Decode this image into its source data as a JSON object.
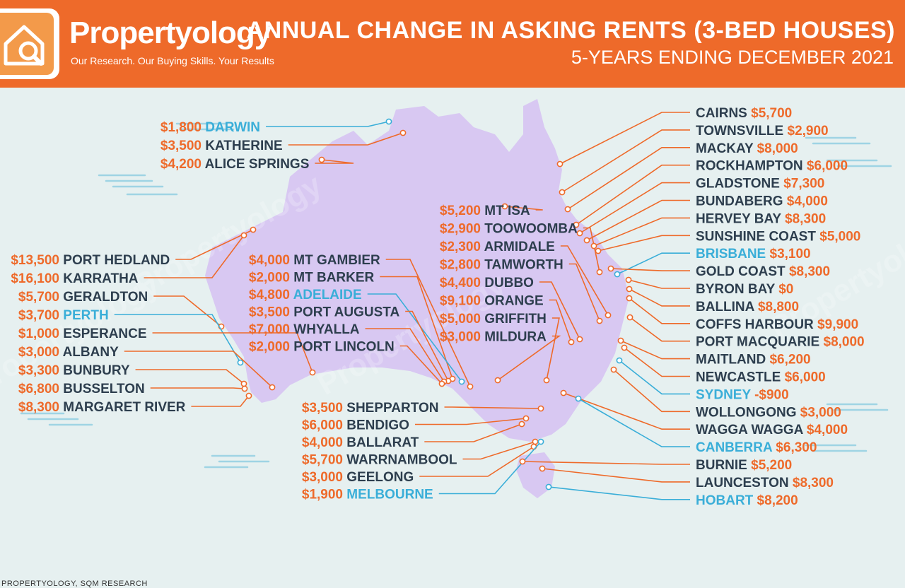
{
  "header": {
    "brand": "Propertyology",
    "tagline": "Our Research. Our Buying Skills. Your Results",
    "title": "ANNUAL CHANGE IN ASKING RENTS (3-BED HOUSES)",
    "subtitle": "5-YEARS ENDING DECEMBER 2021"
  },
  "source": "PROPERTYOLOGY, SQM RESEARCH",
  "colors": {
    "header": "#ee6a2a",
    "value": "#ee6a2a",
    "name": "#2d3e4e",
    "capital": "#3aaed8",
    "map": "#d8c8f2"
  },
  "chart_data": {
    "type": "table",
    "title": "ANNUAL CHANGE IN ASKING RENTS (3-BED HOUSES)",
    "subtitle": "5-YEARS ENDING DECEMBER 2021",
    "unit": "$",
    "groups": {
      "west": [
        {
          "name": "PORT HEDLAND",
          "value": "$13,500",
          "capital": false
        },
        {
          "name": "KARRATHA",
          "value": "$16,100",
          "capital": false
        },
        {
          "name": "GERALDTON",
          "value": "$5,700",
          "capital": false
        },
        {
          "name": "PERTH",
          "value": "$3,700",
          "capital": true
        },
        {
          "name": "ESPERANCE",
          "value": "$1,000",
          "capital": false
        },
        {
          "name": "ALBANY",
          "value": "$3,000",
          "capital": false
        },
        {
          "name": "BUNBURY",
          "value": "$3,300",
          "capital": false
        },
        {
          "name": "BUSSELTON",
          "value": "$6,800",
          "capital": false
        },
        {
          "name": "MARGARET RIVER",
          "value": "$8,300",
          "capital": false
        }
      ],
      "north": [
        {
          "name": "DARWIN",
          "value": "$1,800",
          "capital": true
        },
        {
          "name": "KATHERINE",
          "value": "$3,500",
          "capital": false
        },
        {
          "name": "ALICE SPRINGS",
          "value": "$4,200",
          "capital": false
        }
      ],
      "south_australia": [
        {
          "name": "MT GAMBIER",
          "value": "$4,000",
          "capital": false
        },
        {
          "name": "MT BARKER",
          "value": "$2,000",
          "capital": false
        },
        {
          "name": "ADELAIDE",
          "value": "$4,800",
          "capital": true
        },
        {
          "name": "PORT AUGUSTA",
          "value": "$3,500",
          "capital": false
        },
        {
          "name": "WHYALLA",
          "value": "$7,000",
          "capital": false
        },
        {
          "name": "PORT LINCOLN",
          "value": "$2,000",
          "capital": false
        }
      ],
      "inland": [
        {
          "name": "MT ISA",
          "value": "$5,200",
          "capital": false
        },
        {
          "name": "TOOWOOMBA",
          "value": "$2,900",
          "capital": false
        },
        {
          "name": "ARMIDALE",
          "value": "$2,300",
          "capital": false
        },
        {
          "name": "TAMWORTH",
          "value": "$2,800",
          "capital": false
        },
        {
          "name": "DUBBO",
          "value": "$4,400",
          "capital": false
        },
        {
          "name": "ORANGE",
          "value": "$9,100",
          "capital": false
        },
        {
          "name": "GRIFFITH",
          "value": "$5,000",
          "capital": false
        },
        {
          "name": "MILDURA",
          "value": "$3,000",
          "capital": false
        }
      ],
      "victoria": [
        {
          "name": "SHEPPARTON",
          "value": "$3,500",
          "capital": false
        },
        {
          "name": "BENDIGO",
          "value": "$6,000",
          "capital": false
        },
        {
          "name": "BALLARAT",
          "value": "$4,000",
          "capital": false
        },
        {
          "name": "WARRNAMBOOL",
          "value": "$5,700",
          "capital": false
        },
        {
          "name": "GEELONG",
          "value": "$3,000",
          "capital": false
        },
        {
          "name": "MELBOURNE",
          "value": "$1,900",
          "capital": true
        }
      ],
      "east": [
        {
          "name": "CAIRNS",
          "value": "$5,700",
          "capital": false
        },
        {
          "name": "TOWNSVILLE",
          "value": "$2,900",
          "capital": false
        },
        {
          "name": "MACKAY",
          "value": "$8,000",
          "capital": false
        },
        {
          "name": "ROCKHAMPTON",
          "value": "$6,000",
          "capital": false
        },
        {
          "name": "GLADSTONE",
          "value": "$7,300",
          "capital": false
        },
        {
          "name": "BUNDABERG",
          "value": "$4,000",
          "capital": false
        },
        {
          "name": "HERVEY BAY",
          "value": "$8,300",
          "capital": false
        },
        {
          "name": "SUNSHINE COAST",
          "value": "$5,000",
          "capital": false
        },
        {
          "name": "BRISBANE",
          "value": "$3,100",
          "capital": true
        },
        {
          "name": "GOLD COAST",
          "value": "$8,300",
          "capital": false
        },
        {
          "name": "BYRON BAY",
          "value": "$0",
          "capital": false
        },
        {
          "name": "BALLINA",
          "value": "$8,800",
          "capital": false
        },
        {
          "name": "COFFS HARBOUR",
          "value": "$9,900",
          "capital": false
        },
        {
          "name": "PORT MACQUARIE",
          "value": "$8,000",
          "capital": false
        },
        {
          "name": "MAITLAND",
          "value": "$6,200",
          "capital": false
        },
        {
          "name": "NEWCASTLE",
          "value": "$6,000",
          "capital": false
        },
        {
          "name": "SYDNEY",
          "value": "-$900",
          "capital": true
        },
        {
          "name": "WOLLONGONG",
          "value": "$3,000",
          "capital": false
        },
        {
          "name": "WAGGA WAGGA",
          "value": "$4,000",
          "capital": false
        },
        {
          "name": "CANBERRA",
          "value": "$6,300",
          "capital": true
        },
        {
          "name": "BURNIE",
          "value": "$5,200",
          "capital": false
        },
        {
          "name": "LAUNCESTON",
          "value": "$8,300",
          "capital": false
        },
        {
          "name": "HOBART",
          "value": "$8,200",
          "capital": true
        }
      ]
    }
  }
}
